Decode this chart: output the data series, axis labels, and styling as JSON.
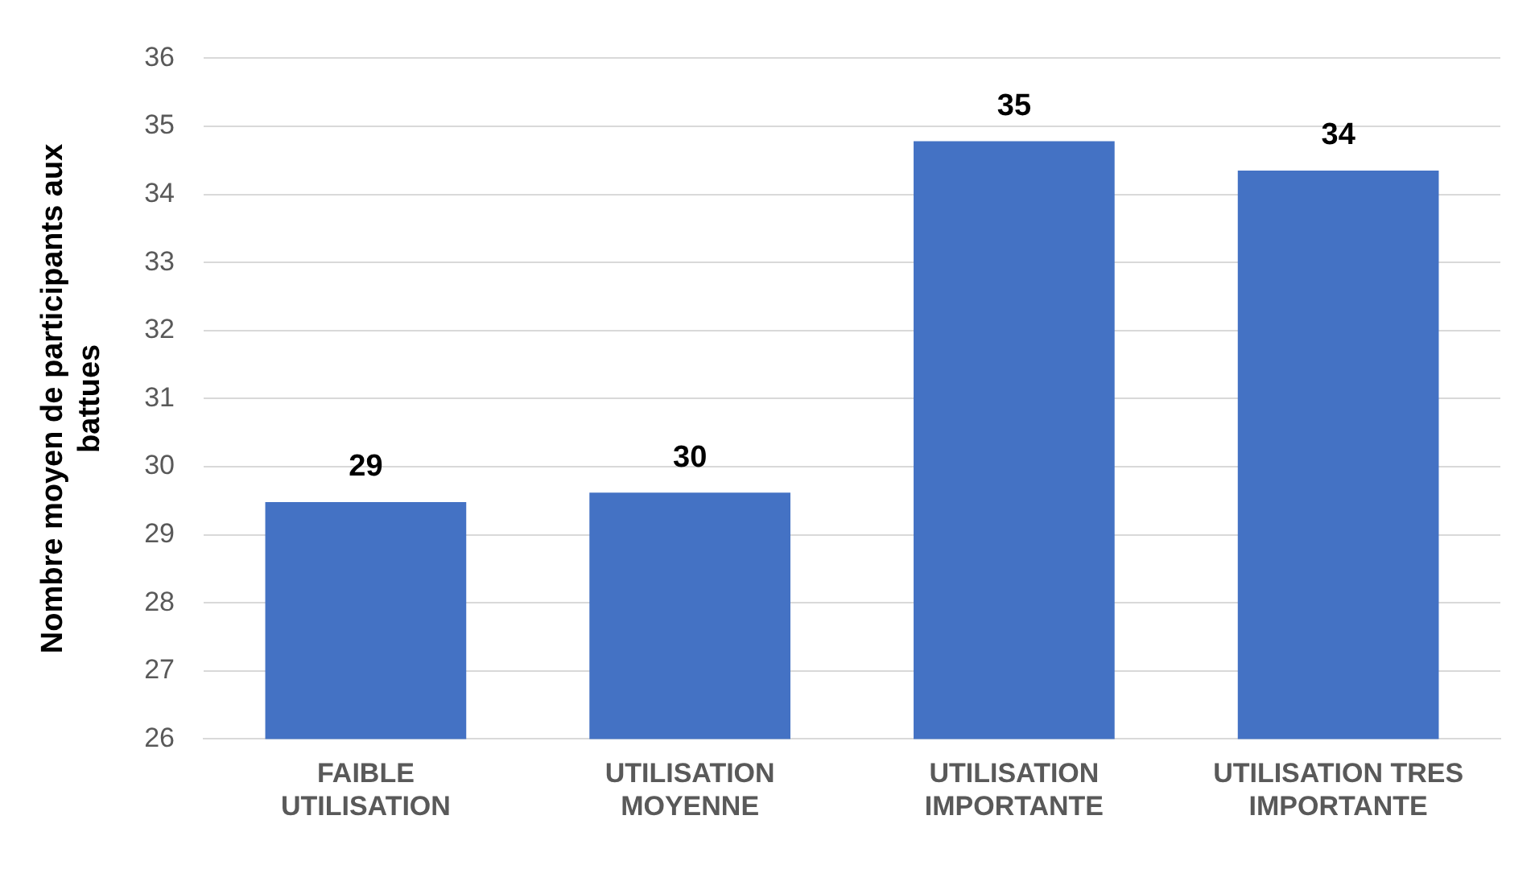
{
  "chart_data": {
    "type": "bar",
    "ylabel": "Nombre moyen de participants aux battues",
    "categories": [
      "FAIBLE UTILISATION",
      "UTILISATION MOYENNE",
      "UTILISATION IMPORTANTE",
      "UTILISATION TRES IMPORTANTE"
    ],
    "values": [
      29.48,
      29.62,
      34.78,
      34.35
    ],
    "value_labels": [
      "29",
      "30",
      "35",
      "34"
    ],
    "color": "#4472c4",
    "ylim": [
      26,
      36
    ],
    "yticks": [
      26,
      27,
      28,
      29,
      30,
      31,
      32,
      33,
      34,
      35,
      36
    ],
    "grid": "y"
  }
}
